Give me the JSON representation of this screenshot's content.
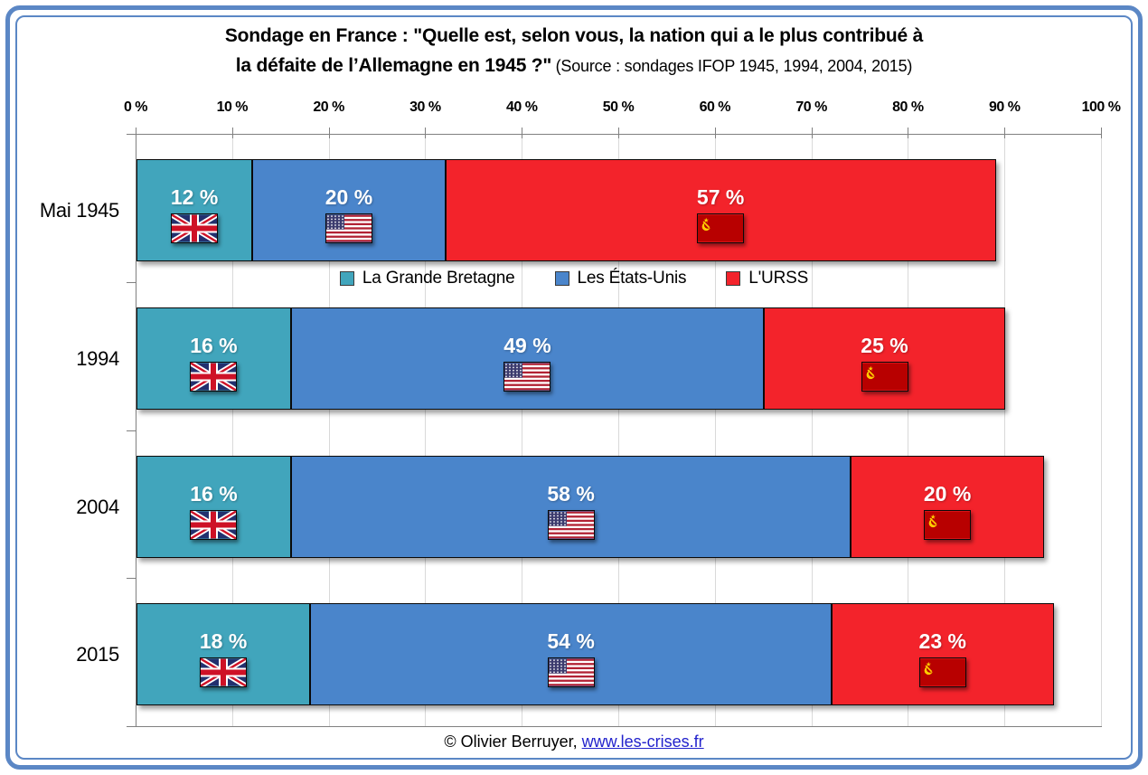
{
  "frame_color": "#5B87C5",
  "title": {
    "line1": "Sondage en France : \"Quelle est, selon vous, la nation qui a le plus contribué à",
    "line2": "la défaite de l’Allemagne en 1945 ?\"",
    "source": "(Source : sondages IFOP 1945, 1994, 2004, 2015)"
  },
  "chart_data": {
    "type": "bar",
    "orientation": "horizontal-stacked",
    "title": "Sondage en France : \"Quelle est, selon vous, la nation qui a le plus contribué à la défaite de l’Allemagne en 1945 ?\"",
    "subtitle": "(Source : sondages IFOP 1945, 1994, 2004, 2015)",
    "categories": [
      "Mai 1945",
      "1994",
      "2004",
      "2015"
    ],
    "series": [
      {
        "name": "La Grande Bretagne",
        "color": "#41A5BC",
        "flag": "uk-flag",
        "values": [
          12,
          16,
          16,
          18
        ]
      },
      {
        "name": "Les États-Unis",
        "color": "#4A85CB",
        "flag": "us-flag",
        "values": [
          20,
          49,
          58,
          54
        ]
      },
      {
        "name": "L'URSS",
        "color": "#F3232B",
        "flag": "ussr-flag",
        "values": [
          57,
          25,
          20,
          23
        ]
      }
    ],
    "x_ticks": [
      "0 %",
      "10 %",
      "20 %",
      "30 %",
      "40 %",
      "50 %",
      "60 %",
      "70 %",
      "80 %",
      "90 %",
      "100 %"
    ],
    "xlim": [
      0,
      100
    ],
    "value_suffix": " %",
    "grid": true,
    "legend_entries": [
      "La Grande Bretagne",
      "Les États-Unis",
      "L'URSS"
    ],
    "legend_position": "inside-gap-below-first-bar"
  },
  "footer": {
    "copyright": "© Olivier Berruyer,",
    "link": "www.les-crises.fr"
  }
}
